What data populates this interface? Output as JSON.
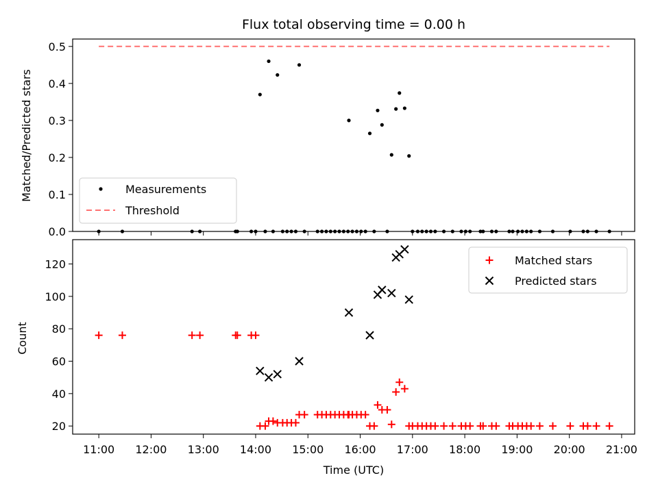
{
  "chart_data": [
    {
      "type": "scatter",
      "title": "Flux total observing time = 0.00 h",
      "xlabel": "",
      "ylabel": "Matched/Predicted stars",
      "xlim": [
        "10:30",
        "21:15"
      ],
      "ylim": [
        0,
        0.52
      ],
      "yticks": [
        0.0,
        0.1,
        0.2,
        0.3,
        0.4,
        0.5
      ],
      "ytick_labels": [
        "0.0",
        "0.1",
        "0.2",
        "0.3",
        "0.4",
        "0.5"
      ],
      "grid": false,
      "legend_position": "lower-left",
      "series": [
        {
          "name": "Measurements",
          "marker": "dot",
          "color": "#000000",
          "points": [
            [
              "11:00",
              0
            ],
            [
              "11:27",
              0
            ],
            [
              "12:47",
              0
            ],
            [
              "12:56",
              0
            ],
            [
              "13:37",
              0
            ],
            [
              "13:39",
              0
            ],
            [
              "13:55",
              0
            ],
            [
              "14:00",
              0
            ],
            [
              "14:05",
              0.37
            ],
            [
              "14:11",
              0
            ],
            [
              "14:15",
              0.46
            ],
            [
              "14:20",
              0
            ],
            [
              "14:25",
              0.423
            ],
            [
              "14:31",
              0
            ],
            [
              "14:36",
              0
            ],
            [
              "14:41",
              0
            ],
            [
              "14:46",
              0
            ],
            [
              "14:50",
              0.45
            ],
            [
              "14:56",
              0
            ],
            [
              "15:11",
              0
            ],
            [
              "15:16",
              0
            ],
            [
              "15:21",
              0
            ],
            [
              "15:26",
              0
            ],
            [
              "15:31",
              0
            ],
            [
              "15:36",
              0
            ],
            [
              "15:41",
              0
            ],
            [
              "15:46",
              0
            ],
            [
              "15:47",
              0.3
            ],
            [
              "15:51",
              0
            ],
            [
              "15:56",
              0
            ],
            [
              "16:01",
              0
            ],
            [
              "16:06",
              0
            ],
            [
              "16:11",
              0.265
            ],
            [
              "16:16",
              0
            ],
            [
              "16:20",
              0.327
            ],
            [
              "16:25",
              0.288
            ],
            [
              "16:31",
              0
            ],
            [
              "16:36",
              0.207
            ],
            [
              "16:41",
              0.331
            ],
            [
              "16:45",
              0.374
            ],
            [
              "16:51",
              0.333
            ],
            [
              "16:56",
              0.204
            ],
            [
              "17:00",
              0
            ],
            [
              "17:06",
              0
            ],
            [
              "17:11",
              0
            ],
            [
              "17:16",
              0
            ],
            [
              "17:21",
              0
            ],
            [
              "17:26",
              0
            ],
            [
              "17:36",
              0
            ],
            [
              "17:46",
              0
            ],
            [
              "17:56",
              0
            ],
            [
              "18:01",
              0
            ],
            [
              "18:06",
              0
            ],
            [
              "18:18",
              0
            ],
            [
              "18:21",
              0
            ],
            [
              "18:31",
              0
            ],
            [
              "18:36",
              0
            ],
            [
              "18:51",
              0
            ],
            [
              "18:55",
              0
            ],
            [
              "19:01",
              0
            ],
            [
              "19:06",
              0
            ],
            [
              "19:11",
              0
            ],
            [
              "19:16",
              0
            ],
            [
              "19:26",
              0
            ],
            [
              "19:41",
              0
            ],
            [
              "20:01",
              0
            ],
            [
              "20:16",
              0
            ],
            [
              "20:21",
              0
            ],
            [
              "20:31",
              0
            ],
            [
              "20:46",
              0
            ]
          ]
        },
        {
          "name": "Threshold",
          "type": "line",
          "style": "dashed",
          "color": "#ff7070",
          "points": [
            [
              "11:00",
              0.5
            ],
            [
              "20:46",
              0.5
            ]
          ]
        }
      ]
    },
    {
      "type": "scatter",
      "title": "",
      "xlabel": "Time (UTC)",
      "ylabel": "Count",
      "xlim": [
        "10:30",
        "21:15"
      ],
      "ylim": [
        15,
        135
      ],
      "yticks": [
        20,
        40,
        60,
        80,
        100,
        120
      ],
      "ytick_labels": [
        "20",
        "40",
        "60",
        "80",
        "100",
        "120"
      ],
      "xticks": [
        "11:00",
        "12:00",
        "13:00",
        "14:00",
        "15:00",
        "16:00",
        "17:00",
        "18:00",
        "19:00",
        "20:00",
        "21:00"
      ],
      "grid": false,
      "legend_position": "top-right",
      "series": [
        {
          "name": "Matched stars",
          "marker": "plus",
          "color": "#ff0000",
          "points": [
            [
              "11:00",
              76
            ],
            [
              "11:27",
              76
            ],
            [
              "12:47",
              76
            ],
            [
              "12:56",
              76
            ],
            [
              "13:37",
              76
            ],
            [
              "13:39",
              76
            ],
            [
              "13:55",
              76
            ],
            [
              "14:00",
              76
            ],
            [
              "14:05",
              20
            ],
            [
              "14:11",
              20
            ],
            [
              "14:15",
              23
            ],
            [
              "14:20",
              23
            ],
            [
              "14:25",
              22
            ],
            [
              "14:31",
              22
            ],
            [
              "14:36",
              22
            ],
            [
              "14:41",
              22
            ],
            [
              "14:46",
              22
            ],
            [
              "14:50",
              27
            ],
            [
              "14:56",
              27
            ],
            [
              "15:11",
              27
            ],
            [
              "15:16",
              27
            ],
            [
              "15:21",
              27
            ],
            [
              "15:26",
              27
            ],
            [
              "15:31",
              27
            ],
            [
              "15:36",
              27
            ],
            [
              "15:41",
              27
            ],
            [
              "15:46",
              27
            ],
            [
              "15:47",
              27
            ],
            [
              "15:51",
              27
            ],
            [
              "15:56",
              27
            ],
            [
              "16:01",
              27
            ],
            [
              "16:06",
              27
            ],
            [
              "16:11",
              20
            ],
            [
              "16:16",
              20
            ],
            [
              "16:20",
              33
            ],
            [
              "16:25",
              30
            ],
            [
              "16:31",
              30
            ],
            [
              "16:36",
              21
            ],
            [
              "16:41",
              41
            ],
            [
              "16:45",
              47
            ],
            [
              "16:51",
              43
            ],
            [
              "16:56",
              20
            ],
            [
              "17:00",
              20
            ],
            [
              "17:06",
              20
            ],
            [
              "17:11",
              20
            ],
            [
              "17:16",
              20
            ],
            [
              "17:21",
              20
            ],
            [
              "17:26",
              20
            ],
            [
              "17:36",
              20
            ],
            [
              "17:46",
              20
            ],
            [
              "17:56",
              20
            ],
            [
              "18:01",
              20
            ],
            [
              "18:06",
              20
            ],
            [
              "18:18",
              20
            ],
            [
              "18:21",
              20
            ],
            [
              "18:31",
              20
            ],
            [
              "18:36",
              20
            ],
            [
              "18:51",
              20
            ],
            [
              "18:55",
              20
            ],
            [
              "19:01",
              20
            ],
            [
              "19:06",
              20
            ],
            [
              "19:11",
              20
            ],
            [
              "19:16",
              20
            ],
            [
              "19:26",
              20
            ],
            [
              "19:41",
              20
            ],
            [
              "20:01",
              20
            ],
            [
              "20:16",
              20
            ],
            [
              "20:21",
              20
            ],
            [
              "20:31",
              20
            ],
            [
              "20:46",
              20
            ]
          ]
        },
        {
          "name": "Predicted stars",
          "marker": "x",
          "color": "#000000",
          "points": [
            [
              "14:05",
              54
            ],
            [
              "14:15",
              50
            ],
            [
              "14:25",
              52
            ],
            [
              "14:50",
              60
            ],
            [
              "15:47",
              90
            ],
            [
              "16:11",
              76
            ],
            [
              "16:20",
              101
            ],
            [
              "16:25",
              104
            ],
            [
              "16:36",
              102
            ],
            [
              "16:41",
              124
            ],
            [
              "16:45",
              126
            ],
            [
              "16:51",
              129
            ],
            [
              "16:56",
              98
            ]
          ]
        }
      ]
    }
  ]
}
